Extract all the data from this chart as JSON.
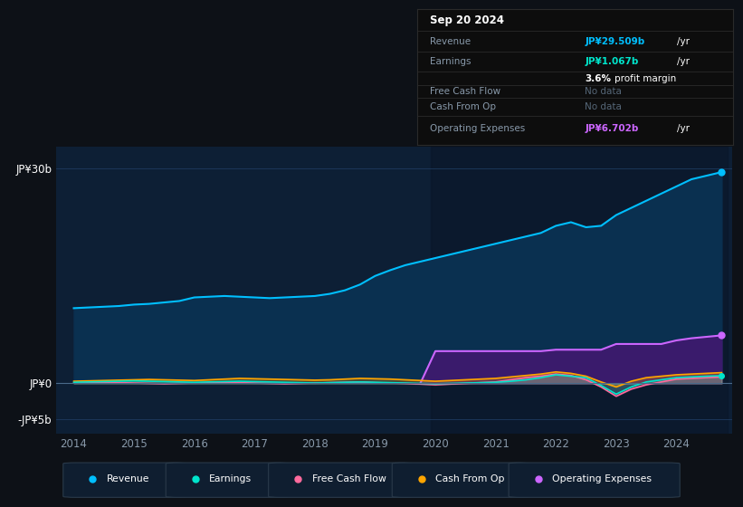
{
  "bg_color": "#0d1117",
  "plot_bg_color": "#0d1f35",
  "years": [
    2014.0,
    2014.25,
    2014.5,
    2014.75,
    2015.0,
    2015.25,
    2015.5,
    2015.75,
    2016.0,
    2016.25,
    2016.5,
    2016.75,
    2017.0,
    2017.25,
    2017.5,
    2017.75,
    2018.0,
    2018.25,
    2018.5,
    2018.75,
    2019.0,
    2019.25,
    2019.5,
    2019.75,
    2020.0,
    2020.25,
    2020.5,
    2020.75,
    2021.0,
    2021.25,
    2021.5,
    2021.75,
    2022.0,
    2022.25,
    2022.5,
    2022.75,
    2023.0,
    2023.25,
    2023.5,
    2023.75,
    2024.0,
    2024.25,
    2024.5,
    2024.75
  ],
  "revenue": [
    10.5,
    10.6,
    10.7,
    10.8,
    11.0,
    11.1,
    11.3,
    11.5,
    12.0,
    12.1,
    12.2,
    12.1,
    12.0,
    11.9,
    12.0,
    12.1,
    12.2,
    12.5,
    13.0,
    13.8,
    15.0,
    15.8,
    16.5,
    17.0,
    17.5,
    18.0,
    18.5,
    19.0,
    19.5,
    20.0,
    20.5,
    21.0,
    22.0,
    22.5,
    21.8,
    22.0,
    23.5,
    24.5,
    25.5,
    26.5,
    27.5,
    28.5,
    29.0,
    29.5
  ],
  "earnings": [
    0.15,
    0.2,
    0.25,
    0.3,
    0.35,
    0.3,
    0.25,
    0.2,
    0.15,
    0.2,
    0.25,
    0.3,
    0.25,
    0.2,
    0.15,
    0.1,
    0.05,
    0.1,
    0.15,
    0.2,
    0.15,
    0.1,
    0.05,
    0.0,
    -0.05,
    0.0,
    0.05,
    0.1,
    0.15,
    0.3,
    0.5,
    0.8,
    1.2,
    1.0,
    0.8,
    -0.3,
    -1.5,
    -0.5,
    0.2,
    0.5,
    0.8,
    0.9,
    1.0,
    1.07
  ],
  "free_cash_flow": [
    0.05,
    0.1,
    0.15,
    0.1,
    0.05,
    0.0,
    -0.05,
    0.0,
    0.05,
    0.1,
    0.15,
    0.1,
    0.05,
    0.0,
    -0.05,
    0.0,
    0.05,
    0.1,
    0.15,
    0.2,
    0.1,
    0.05,
    0.0,
    -0.1,
    -0.2,
    -0.1,
    0.0,
    0.1,
    0.2,
    0.5,
    0.8,
    1.0,
    1.3,
    1.1,
    0.5,
    -0.5,
    -1.8,
    -0.8,
    -0.2,
    0.2,
    0.6,
    0.7,
    0.8,
    0.9
  ],
  "cash_from_op": [
    0.3,
    0.35,
    0.4,
    0.45,
    0.5,
    0.55,
    0.5,
    0.45,
    0.4,
    0.5,
    0.6,
    0.7,
    0.65,
    0.6,
    0.55,
    0.5,
    0.45,
    0.5,
    0.6,
    0.7,
    0.65,
    0.6,
    0.5,
    0.4,
    0.3,
    0.4,
    0.5,
    0.6,
    0.7,
    0.9,
    1.1,
    1.3,
    1.6,
    1.4,
    1.0,
    0.2,
    -0.5,
    0.3,
    0.8,
    1.0,
    1.2,
    1.3,
    1.4,
    1.5
  ],
  "op_expenses_x": [
    2019.75,
    2020.0,
    2020.25,
    2020.5,
    2020.75,
    2021.0,
    2021.25,
    2021.5,
    2021.75,
    2022.0,
    2022.25,
    2022.5,
    2022.75,
    2023.0,
    2023.25,
    2023.5,
    2023.75,
    2024.0,
    2024.25,
    2024.5,
    2024.75
  ],
  "op_expenses_vals": [
    0.0,
    4.5,
    4.5,
    4.5,
    4.5,
    4.5,
    4.5,
    4.5,
    4.5,
    4.7,
    4.7,
    4.7,
    4.7,
    5.5,
    5.5,
    5.5,
    5.5,
    6.0,
    6.3,
    6.5,
    6.7
  ],
  "ylim_min": -7,
  "ylim_max": 33,
  "ytick_vals": [
    -5,
    0,
    30
  ],
  "ytick_labels": [
    "-JP¥5b",
    "JP¥0",
    "JP¥30b"
  ],
  "xtick_vals": [
    2014,
    2015,
    2016,
    2017,
    2018,
    2019,
    2020,
    2021,
    2022,
    2023,
    2024
  ],
  "revenue_color": "#00bfff",
  "revenue_fill": "#0a3050",
  "earnings_color": "#00e5cc",
  "fcf_color": "#ff6b9d",
  "cfo_color": "#ffa500",
  "op_exp_color": "#cc66ff",
  "op_exp_fill": "#3d1a6e",
  "op_exp_fill2": "#2a1060",
  "grid_color": "#1e3a5f",
  "text_color": "#8899aa",
  "bg_color2": "#111827",
  "highlight_after_2020": "#0a1528",
  "legend_items": [
    {
      "label": "Revenue",
      "color": "#00bfff"
    },
    {
      "label": "Earnings",
      "color": "#00e5cc"
    },
    {
      "label": "Free Cash Flow",
      "color": "#ff6b9d"
    },
    {
      "label": "Cash From Op",
      "color": "#ffa500"
    },
    {
      "label": "Operating Expenses",
      "color": "#cc66ff"
    }
  ]
}
